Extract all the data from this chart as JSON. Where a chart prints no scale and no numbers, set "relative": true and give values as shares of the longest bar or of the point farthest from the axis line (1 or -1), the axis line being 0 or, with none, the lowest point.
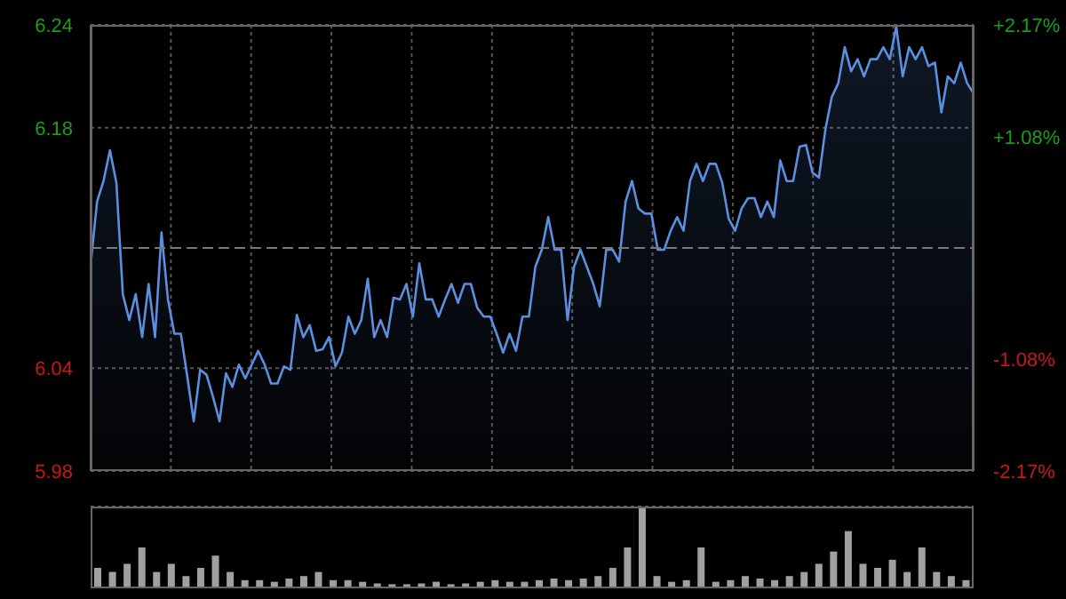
{
  "chart_data": [
    {
      "type": "area",
      "categories": [
        null,
        null,
        null,
        null,
        null,
        null,
        null,
        null,
        null,
        null,
        null,
        null,
        null,
        null,
        null,
        null,
        null,
        null,
        null,
        null,
        null,
        null,
        null,
        null,
        null,
        null,
        null,
        null,
        null,
        null,
        null,
        null,
        null,
        null,
        null,
        null,
        null,
        null,
        null,
        null,
        null,
        null,
        null,
        null,
        null,
        null,
        null,
        null,
        null,
        null,
        null,
        null,
        null,
        null,
        null,
        null,
        null,
        null,
        null,
        null,
        null,
        null,
        null,
        null,
        null,
        null,
        null,
        null,
        null,
        null,
        null,
        null,
        null,
        null,
        null,
        null,
        null,
        null,
        null,
        null,
        null,
        null,
        null,
        null,
        null,
        null,
        null,
        null,
        null,
        null,
        null,
        null,
        null,
        null,
        null,
        null,
        null,
        null,
        null,
        null,
        null,
        null,
        null,
        null,
        null,
        null,
        null,
        null,
        null,
        null,
        null,
        null,
        null,
        null,
        null,
        null,
        null,
        null,
        null,
        null,
        null,
        null,
        null,
        null,
        null,
        null,
        null,
        null,
        null,
        null,
        null,
        null,
        null,
        null,
        null,
        null,
        null,
        null
      ],
      "values": [
        6.1,
        6.137,
        6.149,
        6.167,
        6.148,
        6.083,
        6.068,
        6.083,
        6.058,
        6.089,
        6.058,
        6.119,
        6.08,
        6.06,
        6.06,
        6.035,
        6.009,
        6.039,
        6.036,
        6.023,
        6.009,
        6.037,
        6.029,
        6.042,
        6.034,
        6.042,
        6.05,
        6.042,
        6.031,
        6.031,
        6.041,
        6.039,
        6.071,
        6.058,
        6.065,
        6.05,
        6.051,
        6.058,
        6.041,
        6.049,
        6.07,
        6.06,
        6.068,
        6.092,
        6.058,
        6.068,
        6.058,
        6.081,
        6.08,
        6.089,
        6.07,
        6.101,
        6.08,
        6.08,
        6.07,
        6.08,
        6.089,
        6.078,
        6.089,
        6.089,
        6.075,
        6.07,
        6.07,
        6.06,
        6.049,
        6.06,
        6.05,
        6.07,
        6.07,
        6.099,
        6.109,
        6.128,
        6.109,
        6.109,
        6.068,
        6.099,
        6.109,
        6.099,
        6.089,
        6.076,
        6.109,
        6.109,
        6.102,
        6.137,
        6.149,
        6.133,
        6.13,
        6.13,
        6.109,
        6.109,
        6.12,
        6.128,
        6.12,
        6.149,
        6.159,
        6.149,
        6.159,
        6.159,
        6.148,
        6.127,
        6.12,
        6.133,
        6.139,
        6.139,
        6.128,
        6.137,
        6.128,
        6.161,
        6.149,
        6.149,
        6.169,
        6.17,
        6.154,
        6.151,
        6.179,
        6.198,
        6.206,
        6.227,
        6.213,
        6.22,
        6.21,
        6.22,
        6.22,
        6.227,
        6.22,
        6.239,
        6.21,
        6.227,
        6.22,
        6.227,
        6.216,
        6.218,
        6.189,
        6.21,
        6.206,
        6.218,
        6.206,
        6.2
      ],
      "color": "#5b8fe0",
      "ylim": [
        5.98,
        6.24
      ],
      "yticks": [
        5.98,
        6.04,
        6.18,
        6.24
      ],
      "y2lim": [
        -2.17,
        2.17
      ],
      "y2ticks": [
        {
          "value": -2.17,
          "label": "-2.17%"
        },
        {
          "value": -1.08,
          "label": "-1.08%"
        },
        {
          "value": 1.08,
          "label": "+1.08%"
        },
        {
          "value": 2.17,
          "label": "+2.17%"
        }
      ],
      "ref_lines": [
        {
          "axis": "y",
          "value": 6.11,
          "label": null,
          "line_style": "dashed"
        }
      ],
      "grid": true
    },
    {
      "type": "bar",
      "relative": true,
      "categories": [
        null,
        null,
        null,
        null,
        null,
        null,
        null,
        null,
        null,
        null,
        null,
        null,
        null,
        null,
        null,
        null,
        null,
        null,
        null,
        null,
        null,
        null,
        null,
        null,
        null,
        null,
        null,
        null,
        null,
        null,
        null,
        null,
        null,
        null,
        null,
        null,
        null,
        null,
        null,
        null,
        null,
        null,
        null,
        null,
        null,
        null,
        null,
        null,
        null,
        null,
        null,
        null,
        null,
        null,
        null,
        null,
        null,
        null,
        null,
        null
      ],
      "values": [
        0.25,
        0.2,
        0.3,
        0.5,
        0.2,
        0.3,
        0.15,
        0.25,
        0.4,
        0.2,
        0.1,
        0.1,
        0.08,
        0.12,
        0.15,
        0.2,
        0.1,
        0.1,
        0.08,
        0.06,
        0.05,
        0.05,
        0.06,
        0.08,
        0.05,
        0.06,
        0.08,
        0.1,
        0.08,
        0.08,
        0.1,
        0.12,
        0.1,
        0.12,
        0.15,
        0.25,
        0.5,
        1,
        0.15,
        0.08,
        0.1,
        0.5,
        0.08,
        0.1,
        0.15,
        0.12,
        0.1,
        0.15,
        0.2,
        0.3,
        0.45,
        0.7,
        0.3,
        0.25,
        0.35,
        0.2,
        0.5,
        0.2,
        0.15,
        0.1
      ],
      "color": "#a0a0a0",
      "grid": true
    }
  ]
}
